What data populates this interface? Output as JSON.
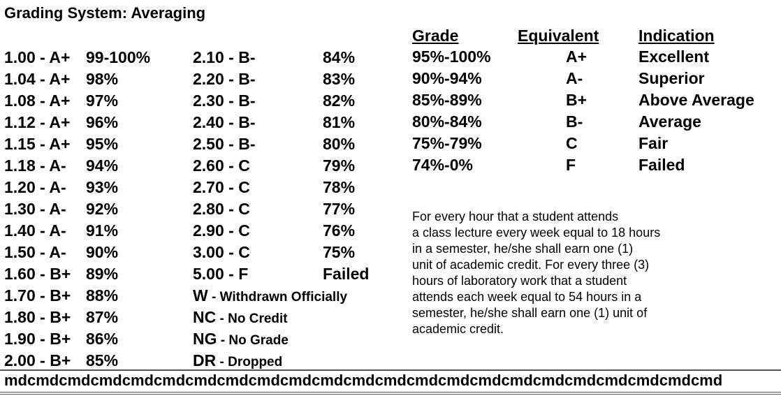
{
  "title": "Grading System: Averaging",
  "col1": [
    {
      "grade": "1.00 - A+",
      "pct": "99-100%"
    },
    {
      "grade": "1.04 - A+",
      "pct": "98%"
    },
    {
      "grade": "1.08 - A+",
      "pct": "97%"
    },
    {
      "grade": "1.12 - A+",
      "pct": "96%"
    },
    {
      "grade": "1.15 - A+",
      "pct": "95%"
    },
    {
      "grade": "1.18 - A-",
      "pct": "94%"
    },
    {
      "grade": "1.20 - A-",
      "pct": "93%"
    },
    {
      "grade": "1.30 - A-",
      "pct": "92%"
    },
    {
      "grade": "1.40 - A-",
      "pct": "91%"
    },
    {
      "grade": "1.50 - A-",
      "pct": "90%"
    },
    {
      "grade": "1.60 - B+",
      "pct": "89%"
    },
    {
      "grade": "1.70 - B+",
      "pct": "88%"
    },
    {
      "grade": "1.80 - B+",
      "pct": "87%"
    },
    {
      "grade": "1.90 - B+",
      "pct": "86%"
    },
    {
      "grade": "2.00 - B+",
      "pct": "85%"
    }
  ],
  "col2": [
    {
      "grade": "2.10 - B-",
      "pct": "84%"
    },
    {
      "grade": "2.20 - B-",
      "pct": "83%"
    },
    {
      "grade": "2.30 - B-",
      "pct": "82%"
    },
    {
      "grade": "2.40 - B-",
      "pct": "81%"
    },
    {
      "grade": "2.50 - B-",
      "pct": "80%"
    },
    {
      "grade": "2.60 - C",
      "pct": "79%"
    },
    {
      "grade": "2.70 - C",
      "pct": "78%"
    },
    {
      "grade": "2.80 - C",
      "pct": "77%"
    },
    {
      "grade": "2.90 - C",
      "pct": "76%"
    },
    {
      "grade": "3.00 - C",
      "pct": "75%"
    },
    {
      "grade": "5.00 - F",
      "pct": "Failed"
    }
  ],
  "codes": [
    {
      "code": "W",
      "desc": " - Withdrawn Officially"
    },
    {
      "code": "NC",
      "desc": " - No Credit"
    },
    {
      "code": "NG",
      "desc": " - No Grade"
    },
    {
      "code": "DR",
      "desc": " - Dropped"
    }
  ],
  "equiv_table": {
    "headers": {
      "grade": "Grade",
      "equivalent": "Equivalent",
      "indication": "Indication"
    },
    "rows": [
      {
        "grade": "95%-100%",
        "equivalent": "A+",
        "indication": "Excellent"
      },
      {
        "grade": "90%-94%",
        "equivalent": "A-",
        "indication": "Superior"
      },
      {
        "grade": "85%-89%",
        "equivalent": "B+",
        "indication": "Above Average"
      },
      {
        "grade": "80%-84%",
        "equivalent": "B-",
        "indication": "Average"
      },
      {
        "grade": "75%-79%",
        "equivalent": "C",
        "indication": "Fair"
      },
      {
        "grade": "74%-0%",
        "equivalent": "F",
        "indication": "Failed"
      }
    ]
  },
  "paragraph": "        For every hour that a student attends\na class lecture every week equal to 18 hours\nin a semester,  he/she  shall  earn  one (1)\nunit  of academic credit.  For every  three (3)\n hours of  laboratory work  that  a student\nattends  each week equal to 54 hours in a\nsemester,  he/she  shall  earn one (1) unit of\nacademic credit.",
  "footer": "mdcmdcmdcmdcmdcmdcmdcmdcmdcmdcmdcmdcmdcmdcmdcmdcmdcmdcmdcmdcmdcmdcmd"
}
